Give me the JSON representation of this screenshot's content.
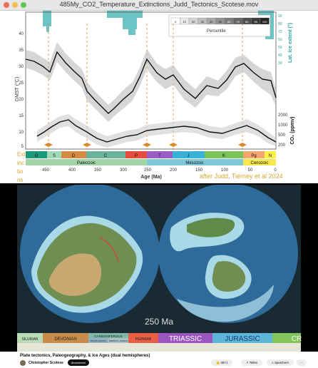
{
  "window": {
    "title": "485My_CO2_Temperature_Extinctions_Judd_Tectonics_Scotese.mov"
  },
  "chart": {
    "percentile_title": "Percentile",
    "percentile_values": [
      "0",
      "10",
      "20",
      "30",
      "40",
      "50",
      "60",
      "70",
      "80",
      "90",
      "100"
    ],
    "ylabel_gmst": "GMST (°C)",
    "ylabel_ice": "Lat. ice extent (°)",
    "ylabel_co2": "CO₂ (ppmv)",
    "xlabel": "Age (Ma)",
    "left_ticks": [
      "40",
      "35",
      "30",
      "25",
      "20",
      "15",
      "10",
      "5"
    ],
    "right_ice_ticks": [
      "90",
      "80",
      "70",
      "60",
      "50",
      "40",
      "30"
    ],
    "right_co2_ticks": [
      "2000",
      "1000",
      "500",
      "200"
    ],
    "x_ticks": [
      "450",
      "400",
      "350",
      "300",
      "250",
      "200",
      "150",
      "100",
      "50",
      "0"
    ],
    "periods": [
      "O",
      "S",
      "D",
      "C",
      "P",
      "T",
      "J",
      "K",
      "Pg",
      "N"
    ],
    "eras": [
      "Paleozoic",
      "Mesozoic",
      "Cenozoic"
    ],
    "extinction_label": "Ext\ninc\ntio\nns",
    "credit": "after Judd, Tierney et al 2024"
  },
  "map": {
    "age": "250 Ma",
    "timeline": [
      "SILURIAN",
      "DEVONIAN",
      "CARBONIFEROUS",
      "PERMIAN",
      "TRIASSIC",
      "JURASSIC",
      "CR"
    ],
    "carbon_sub": [
      "MISSIS-SIPPIAN",
      "PENNSYL-VANIAN"
    ]
  },
  "video_info": {
    "title": "Plate tectonics, Paleogeography, & Ice Ages (dual hemispheres)",
    "channel": "Christopher Scotese",
    "subs": "",
    "subscribe": "Abonnieren",
    "likes": "4871",
    "share": "Teilen",
    "save": "Speichern"
  }
}
